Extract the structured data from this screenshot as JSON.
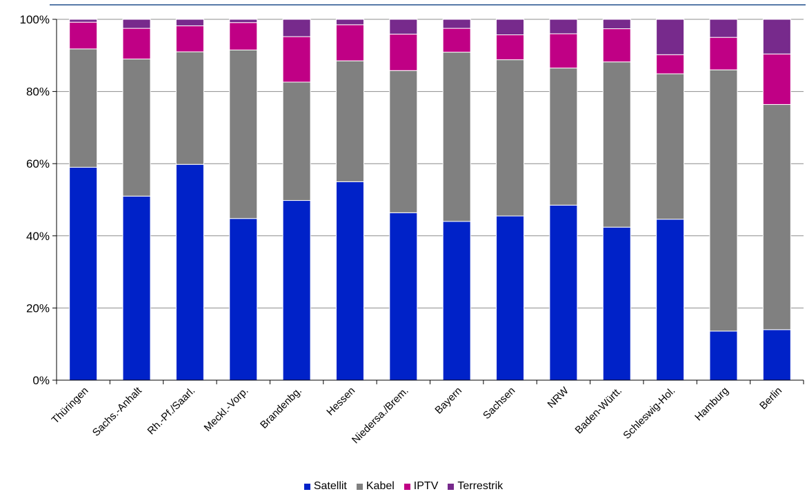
{
  "chart_data": {
    "type": "bar",
    "stacked": true,
    "title": "",
    "xlabel": "",
    "ylabel": "",
    "ylim": [
      0,
      100
    ],
    "yticks": [
      "0%",
      "20%",
      "40%",
      "60%",
      "80%",
      "100%"
    ],
    "yticks_values": [
      0,
      20,
      40,
      60,
      80,
      100
    ],
    "grid": true,
    "legend_position": "bottom",
    "categories": [
      "Thüringen",
      "Sachs.-Anhalt",
      "Rh.-Pf./Saarl.",
      "Meckl.-Vorp.",
      "Brandenbg.",
      "Hessen",
      "Niedersa./Brem.",
      "Bayern",
      "Sachsen",
      "NRW",
      "Baden-Württ.",
      "Schleswig-Hol.",
      "Hamburg",
      "Berlin"
    ],
    "series": [
      {
        "name": "Satellit",
        "color": "#0022c8",
        "values": [
          59.0,
          51.0,
          59.8,
          44.8,
          49.8,
          55.0,
          46.4,
          44.0,
          45.5,
          48.5,
          42.4,
          44.6,
          13.6,
          14.0
        ]
      },
      {
        "name": "Kabel",
        "color": "#808080",
        "values": [
          32.8,
          38.0,
          31.2,
          46.7,
          32.8,
          33.5,
          39.4,
          46.9,
          43.3,
          38.0,
          45.8,
          40.3,
          72.4,
          62.4
        ]
      },
      {
        "name": "IPTV",
        "color": "#c00085",
        "values": [
          7.4,
          8.5,
          7.2,
          7.6,
          12.6,
          10.0,
          10.1,
          6.6,
          6.9,
          9.5,
          9.2,
          5.3,
          9.0,
          14.0
        ]
      },
      {
        "name": "Terrestrik",
        "color": "#772a8c",
        "values": [
          0.8,
          2.5,
          1.8,
          0.9,
          4.8,
          1.5,
          4.1,
          2.5,
          4.3,
          4.0,
          2.6,
          9.8,
          5.0,
          9.6
        ]
      }
    ]
  }
}
